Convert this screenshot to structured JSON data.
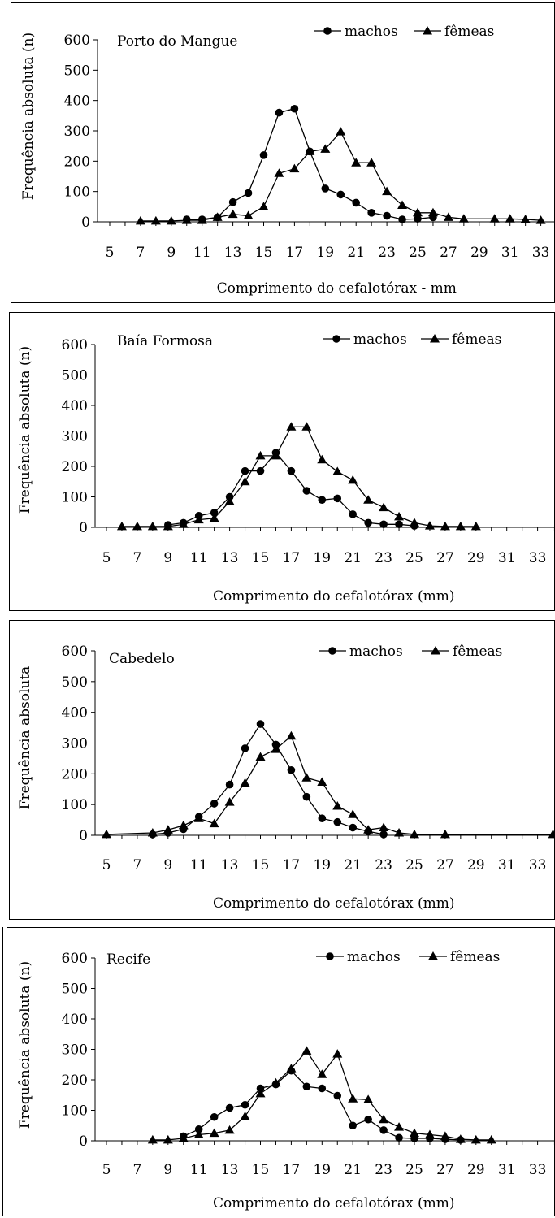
{
  "chart_data": [
    {
      "type": "line",
      "title": "Porto do Mangue",
      "xlabel": "Comprimento do cefalotórax - mm",
      "ylabel": "Frequência absoluta (n)",
      "ylim": [
        0,
        600
      ],
      "yticks": [
        "0",
        "100",
        "200",
        "300",
        "400",
        "500",
        "600"
      ],
      "xlim": [
        5,
        34
      ],
      "xticks": [
        "5",
        "7",
        "9",
        "11",
        "13",
        "15",
        "17",
        "19",
        "21",
        "23",
        "25",
        "27",
        "29",
        "31",
        "33"
      ],
      "legend": "top-right",
      "series": [
        {
          "name": "machos",
          "marker": "circle",
          "x": [
            10,
            11,
            12,
            13,
            14,
            15,
            16,
            17,
            18,
            19,
            20,
            21,
            22,
            23,
            24,
            25,
            26
          ],
          "y": [
            8,
            8,
            15,
            65,
            95,
            220,
            360,
            373,
            232,
            110,
            90,
            63,
            30,
            20,
            8,
            10,
            15
          ]
        },
        {
          "name": "fêmeas",
          "marker": "triangle",
          "x": [
            7,
            8,
            9,
            10,
            11,
            12,
            13,
            14,
            15,
            16,
            17,
            18,
            19,
            20,
            21,
            22,
            23,
            24,
            25,
            26,
            27,
            28,
            30,
            31,
            32,
            33
          ],
          "y": [
            3,
            3,
            3,
            5,
            5,
            15,
            25,
            20,
            50,
            160,
            175,
            232,
            240,
            297,
            195,
            195,
            100,
            55,
            30,
            30,
            15,
            10,
            10,
            10,
            8,
            5
          ]
        }
      ]
    },
    {
      "type": "line",
      "title": "Baía Formosa",
      "xlabel": "Comprimento do cefalotórax (mm)",
      "ylabel": "Frequência absoluta (n)",
      "ylim": [
        0,
        600
      ],
      "yticks": [
        "0",
        "100",
        "200",
        "300",
        "400",
        "500",
        "600"
      ],
      "xlim": [
        5,
        34
      ],
      "xticks": [
        "5",
        "7",
        "9",
        "11",
        "13",
        "15",
        "17",
        "19",
        "21",
        "23",
        "25",
        "27",
        "29",
        "31",
        "33"
      ],
      "legend": "top-right",
      "series": [
        {
          "name": "machos",
          "marker": "circle",
          "x": [
            9,
            10,
            11,
            12,
            13,
            14,
            15,
            16,
            17,
            18,
            19,
            20,
            21,
            22,
            23,
            24,
            25
          ],
          "y": [
            8,
            15,
            38,
            48,
            100,
            185,
            185,
            245,
            185,
            120,
            90,
            95,
            43,
            15,
            10,
            10,
            5
          ]
        },
        {
          "name": "fêmeas",
          "marker": "triangle",
          "x": [
            6,
            7,
            8,
            9,
            10,
            11,
            12,
            13,
            14,
            15,
            16,
            17,
            18,
            19,
            20,
            21,
            22,
            23,
            24,
            25,
            26,
            27,
            28,
            29
          ],
          "y": [
            3,
            3,
            3,
            3,
            10,
            25,
            30,
            85,
            150,
            235,
            235,
            330,
            330,
            222,
            183,
            155,
            90,
            65,
            35,
            15,
            5,
            3,
            3,
            3
          ]
        }
      ]
    },
    {
      "type": "line",
      "title": "Cabedelo",
      "xlabel": "Comprimento do cefalotórax (mm)",
      "ylabel": "Frequência absoluta",
      "ylim": [
        0,
        600
      ],
      "yticks": [
        "0",
        "100",
        "200",
        "300",
        "400",
        "500",
        "600"
      ],
      "xlim": [
        5,
        34
      ],
      "xticks": [
        "5",
        "7",
        "9",
        "11",
        "13",
        "15",
        "17",
        "19",
        "21",
        "23",
        "25",
        "27",
        "29",
        "31",
        "33"
      ],
      "legend": "top-right",
      "series": [
        {
          "name": "machos",
          "marker": "circle",
          "x": [
            8,
            9,
            10,
            11,
            12,
            13,
            14,
            15,
            16,
            17,
            18,
            19,
            20,
            21,
            22,
            23
          ],
          "y": [
            3,
            8,
            20,
            60,
            103,
            165,
            283,
            362,
            295,
            212,
            125,
            55,
            43,
            25,
            13,
            3
          ]
        },
        {
          "name": "fêmeas",
          "marker": "triangle",
          "x": [
            5,
            8,
            9,
            10,
            11,
            12,
            13,
            14,
            15,
            16,
            17,
            18,
            19,
            20,
            21,
            22,
            23,
            24,
            25,
            27,
            34
          ],
          "y": [
            3,
            8,
            18,
            32,
            55,
            38,
            108,
            170,
            255,
            280,
            323,
            187,
            173,
            95,
            68,
            18,
            25,
            8,
            3,
            3,
            3
          ]
        }
      ]
    },
    {
      "type": "line",
      "title": "Recife",
      "xlabel": "Comprimento do cefalotórax (mm)",
      "ylabel": "Frequência absoluta (n)",
      "ylim": [
        0,
        600
      ],
      "yticks": [
        "0",
        "100",
        "200",
        "300",
        "400",
        "500",
        "600"
      ],
      "xlim": [
        5,
        34
      ],
      "xticks": [
        "5",
        "7",
        "9",
        "11",
        "13",
        "15",
        "17",
        "19",
        "21",
        "23",
        "25",
        "27",
        "29",
        "31",
        "33"
      ],
      "legend": "top-right",
      "series": [
        {
          "name": "machos",
          "marker": "circle",
          "x": [
            10,
            11,
            12,
            13,
            14,
            15,
            16,
            17,
            18,
            19,
            20,
            21,
            22,
            23,
            24,
            25,
            26,
            27,
            28
          ],
          "y": [
            15,
            38,
            78,
            108,
            118,
            172,
            185,
            230,
            178,
            172,
            148,
            50,
            70,
            35,
            10,
            8,
            8,
            5,
            3
          ]
        },
        {
          "name": "fêmeas",
          "marker": "triangle",
          "x": [
            8,
            9,
            10,
            11,
            12,
            13,
            14,
            15,
            16,
            17,
            18,
            19,
            20,
            21,
            22,
            23,
            24,
            25,
            26,
            27,
            28,
            29,
            30
          ],
          "y": [
            3,
            3,
            8,
            20,
            25,
            35,
            80,
            155,
            190,
            237,
            295,
            218,
            285,
            138,
            135,
            70,
            45,
            25,
            20,
            15,
            5,
            3,
            3
          ]
        }
      ]
    }
  ]
}
